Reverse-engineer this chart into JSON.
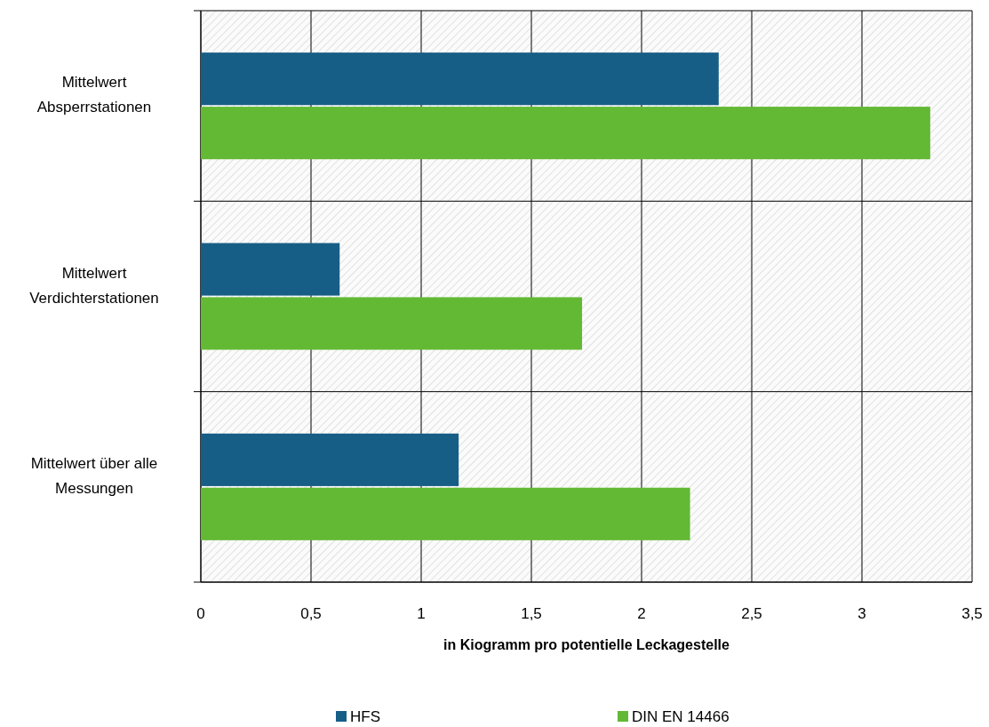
{
  "chart_data": {
    "type": "bar",
    "orientation": "horizontal",
    "xlabel": "in Kiogramm pro potentielle Leckagestelle",
    "categories": [
      "Mittelwert Absperrstationen",
      "Mittelwert Verdichterstationen",
      "Mittelwert über alle Messungen"
    ],
    "series": [
      {
        "name": "HFS",
        "color": "#175e87",
        "values": [
          2.35,
          0.63,
          1.17
        ]
      },
      {
        "name": "DIN EN 14466",
        "color": "#63b934",
        "values": [
          3.31,
          1.73,
          2.22
        ]
      }
    ],
    "xlim": [
      0,
      3.5
    ],
    "xticks": [
      0,
      {
        "value": 0.5,
        "label": "0,5"
      },
      1,
      {
        "value": 1.5,
        "label": "1,5"
      },
      2,
      {
        "value": 2.5,
        "label": "2,5"
      },
      3,
      {
        "value": 3.5,
        "label": "3,5"
      }
    ],
    "grid": true,
    "legend": "bottom"
  }
}
